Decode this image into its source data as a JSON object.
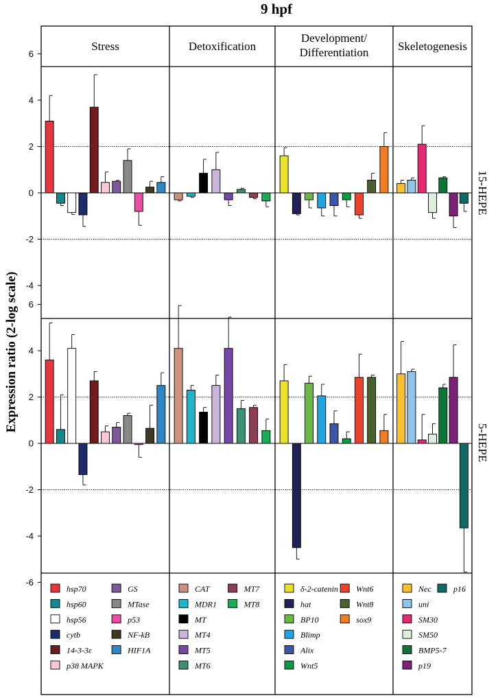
{
  "chart_data": {
    "type": "bar",
    "title": "9 hpf",
    "ylabel": "Expression ratio (2-log scale)",
    "ylim": [
      -6,
      6
    ],
    "yticks": [
      "6",
      "4",
      "2",
      "0",
      "-2",
      "-4",
      "6",
      "4",
      "2",
      "0",
      "-2",
      "-4",
      "-6"
    ],
    "reference_lines": [
      2,
      -2
    ],
    "categories": [
      "Stress",
      "Detoxification",
      "Development/ Differentiation",
      "Skeletogenesis"
    ],
    "category_lines": [
      [
        "Stress"
      ],
      [
        "Detoxification"
      ],
      [
        "Development/",
        "Differentiation"
      ],
      [
        "Skeletogenesis"
      ]
    ],
    "treatments": [
      "15-HEPE",
      "5-HEPE"
    ],
    "groups": [
      {
        "name": "Stress",
        "genes": [
          {
            "name": "hsp70",
            "color": "#e8343f",
            "values": {
              "15-HEPE": 3.1,
              "5-HEPE": 3.6
            },
            "errors": {
              "15-HEPE": 1.1,
              "5-HEPE": 1.6
            }
          },
          {
            "name": "hsp60",
            "color": "#12878e",
            "values": {
              "15-HEPE": -0.45,
              "5-HEPE": 0.6
            },
            "errors": {
              "15-HEPE": 0.1,
              "5-HEPE": 1.5
            }
          },
          {
            "name": "hsp56",
            "color": "#ffffff",
            "values": {
              "15-HEPE": -0.85,
              "5-HEPE": 4.1
            },
            "errors": {
              "15-HEPE": 0.08,
              "5-HEPE": 0.6
            }
          },
          {
            "name": "cytb",
            "color": "#1e2c6b",
            "values": {
              "15-HEPE": -0.95,
              "5-HEPE": -1.35
            },
            "errors": {
              "15-HEPE": 0.5,
              "5-HEPE": 0.45
            }
          },
          {
            "name": "14-3-3ε",
            "color": "#701c1f",
            "values": {
              "15-HEPE": 3.7,
              "5-HEPE": 2.7
            },
            "errors": {
              "15-HEPE": 1.4,
              "5-HEPE": 0.4
            }
          },
          {
            "name": "p38 MAPK",
            "color": "#f8c8d5",
            "values": {
              "15-HEPE": 0.45,
              "5-HEPE": 0.5
            },
            "errors": {
              "15-HEPE": 0.45,
              "5-HEPE": 0.25
            }
          },
          {
            "name": "GS",
            "color": "#7b5a9a",
            "values": {
              "15-HEPE": 0.5,
              "5-HEPE": 0.7
            },
            "errors": {
              "15-HEPE": 0.05,
              "5-HEPE": 0.2
            }
          },
          {
            "name": "MTase",
            "color": "#888888",
            "values": {
              "15-HEPE": 1.4,
              "5-HEPE": 1.2
            },
            "errors": {
              "15-HEPE": 0.5,
              "5-HEPE": 0.1
            }
          },
          {
            "name": "p53",
            "color": "#ea4fa3",
            "values": {
              "15-HEPE": -0.8,
              "5-HEPE": -0.05
            },
            "errors": {
              "15-HEPE": 0.6,
              "5-HEPE": 0.55
            }
          },
          {
            "name": "NF-kB",
            "color": "#3e3a22",
            "values": {
              "15-HEPE": 0.25,
              "5-HEPE": 0.65
            },
            "errors": {
              "15-HEPE": 0.25,
              "5-HEPE": 1.0
            }
          },
          {
            "name": "HIF1A",
            "color": "#2f86c6",
            "values": {
              "15-HEPE": 0.45,
              "5-HEPE": 2.5
            },
            "errors": {
              "15-HEPE": 0.25,
              "5-HEPE": 0.55
            }
          }
        ]
      },
      {
        "name": "Detoxification",
        "genes": [
          {
            "name": "CAT",
            "color": "#c9917e",
            "values": {
              "15-HEPE": -0.3,
              "5-HEPE": 4.1
            },
            "errors": {
              "15-HEPE": 0.05,
              "5-HEPE": 1.85
            }
          },
          {
            "name": "MDR1",
            "color": "#1db4cc",
            "values": {
              "15-HEPE": -0.15,
              "5-HEPE": 2.3
            },
            "errors": {
              "15-HEPE": 0.05,
              "5-HEPE": 0.2
            }
          },
          {
            "name": "MT",
            "color": "#000000",
            "values": {
              "15-HEPE": 0.85,
              "5-HEPE": 1.35
            },
            "errors": {
              "15-HEPE": 0.6,
              "5-HEPE": 0.2
            }
          },
          {
            "name": "MT4",
            "color": "#c8b4d8",
            "values": {
              "15-HEPE": 1.0,
              "5-HEPE": 2.5
            },
            "errors": {
              "15-HEPE": 0.75,
              "5-HEPE": 0.45
            }
          },
          {
            "name": "MT5",
            "color": "#7548a6",
            "values": {
              "15-HEPE": -0.3,
              "5-HEPE": 4.1
            },
            "errors": {
              "15-HEPE": 0.25,
              "5-HEPE": 1.35
            }
          },
          {
            "name": "MT6",
            "color": "#3f8f76",
            "values": {
              "15-HEPE": 0.15,
              "5-HEPE": 1.5
            },
            "errors": {
              "15-HEPE": 0.05,
              "5-HEPE": 0.35
            }
          },
          {
            "name": "MT7",
            "color": "#8a3d53",
            "values": {
              "15-HEPE": -0.2,
              "5-HEPE": 1.55
            },
            "errors": {
              "15-HEPE": 0.05,
              "5-HEPE": 0.1
            }
          },
          {
            "name": "MT8",
            "color": "#18ad58",
            "values": {
              "15-HEPE": -0.35,
              "5-HEPE": 0.55
            },
            "errors": {
              "15-HEPE": 0.25,
              "5-HEPE": 0.5
            }
          }
        ]
      },
      {
        "name": "Development/ Differentiation",
        "genes": [
          {
            "name": "δ-2-catenin",
            "color": "#e8e22b",
            "values": {
              "15-HEPE": 1.6,
              "5-HEPE": 2.7
            },
            "errors": {
              "15-HEPE": 0.35,
              "5-HEPE": 0.7
            }
          },
          {
            "name": "hat",
            "color": "#222056",
            "values": {
              "15-HEPE": -0.9,
              "5-HEPE": -4.5
            },
            "errors": {
              "15-HEPE": 0.05,
              "5-HEPE": 0.5
            }
          },
          {
            "name": "BP10",
            "color": "#6cb845",
            "values": {
              "15-HEPE": -0.3,
              "5-HEPE": 2.6
            },
            "errors": {
              "15-HEPE": 0.35,
              "5-HEPE": 0.3
            }
          },
          {
            "name": "Blimp",
            "color": "#1fa5e3",
            "values": {
              "15-HEPE": -0.65,
              "5-HEPE": 2.05
            },
            "errors": {
              "15-HEPE": 0.35,
              "5-HEPE": 0.5
            }
          },
          {
            "name": "Alix",
            "color": "#3d57a6",
            "values": {
              "15-HEPE": -0.55,
              "5-HEPE": 0.85
            },
            "errors": {
              "15-HEPE": 0.45,
              "5-HEPE": 0.55
            }
          },
          {
            "name": "Wnt5",
            "color": "#0d9a47",
            "values": {
              "15-HEPE": -0.3,
              "5-HEPE": 0.2
            },
            "errors": {
              "15-HEPE": 0.3,
              "5-HEPE": 0.3
            }
          },
          {
            "name": "Wnt6",
            "color": "#e8432c",
            "values": {
              "15-HEPE": -0.95,
              "5-HEPE": 2.85
            },
            "errors": {
              "15-HEPE": 0.15,
              "5-HEPE": 1.0
            }
          },
          {
            "name": "Wnt8",
            "color": "#4b6030",
            "values": {
              "15-HEPE": 0.55,
              "5-HEPE": 2.85
            },
            "errors": {
              "15-HEPE": 0.3,
              "5-HEPE": 0.1
            }
          },
          {
            "name": "sox9",
            "color": "#ef7d24",
            "values": {
              "15-HEPE": 2.0,
              "5-HEPE": 0.55
            },
            "errors": {
              "15-HEPE": 0.6,
              "5-HEPE": 0.7
            }
          }
        ]
      },
      {
        "name": "Skeletogenesis",
        "genes": [
          {
            "name": "Nec",
            "color": "#f8c02e",
            "values": {
              "15-HEPE": 0.4,
              "5-HEPE": 3.0
            },
            "errors": {
              "15-HEPE": 0.15,
              "5-HEPE": 1.4
            }
          },
          {
            "name": "uni",
            "color": "#8fc5eb",
            "values": {
              "15-HEPE": 0.55,
              "5-HEPE": 3.1
            },
            "errors": {
              "15-HEPE": 0.1,
              "5-HEPE": 0.1
            }
          },
          {
            "name": "SM30",
            "color": "#e32b72",
            "values": {
              "15-HEPE": 2.1,
              "5-HEPE": 0.15
            },
            "errors": {
              "15-HEPE": 0.8,
              "5-HEPE": 1.1
            }
          },
          {
            "name": "SM50",
            "color": "#ddeedd",
            "values": {
              "15-HEPE": -0.85,
              "5-HEPE": 0.4
            },
            "errors": {
              "15-HEPE": 0.25,
              "5-HEPE": 0.45
            }
          },
          {
            "name": "BMP5-7",
            "color": "#0e7437",
            "values": {
              "15-HEPE": 0.65,
              "5-HEPE": 2.4
            },
            "errors": {
              "15-HEPE": 0.05,
              "5-HEPE": 0.15
            }
          },
          {
            "name": "p19",
            "color": "#7d2377",
            "values": {
              "15-HEPE": -1.0,
              "5-HEPE": 2.85
            },
            "errors": {
              "15-HEPE": 0.5,
              "5-HEPE": 1.4
            }
          },
          {
            "name": "p16",
            "color": "#0d6b66",
            "values": {
              "15-HEPE": -0.45,
              "5-HEPE": -3.65
            },
            "errors": {
              "15-HEPE": 0.35,
              "5-HEPE": 1.9
            }
          }
        ]
      }
    ],
    "legend_columns": [
      [
        [
          "hsp70",
          "hsp60",
          "hsp56",
          "cytb",
          "14-3-3ε",
          "p38 MAPK"
        ],
        [
          "GS",
          "MTase",
          "p53",
          "NF-kB",
          "HIF1A"
        ]
      ],
      [
        [
          "CAT",
          "MDR1",
          "MT",
          "MT4",
          "MT5",
          "MT6"
        ],
        [
          "MT7",
          "MT8"
        ]
      ],
      [
        [
          "δ-2-catenin",
          "hat",
          "BP10",
          "Blimp",
          "Alix",
          "Wnt5"
        ],
        [
          "Wnt6",
          "Wnt8",
          "sox9"
        ]
      ],
      [
        [
          "Nec",
          "uni",
          "SM30",
          "SM50",
          "BMP5-7",
          "p19"
        ],
        [
          "p16"
        ]
      ]
    ]
  }
}
